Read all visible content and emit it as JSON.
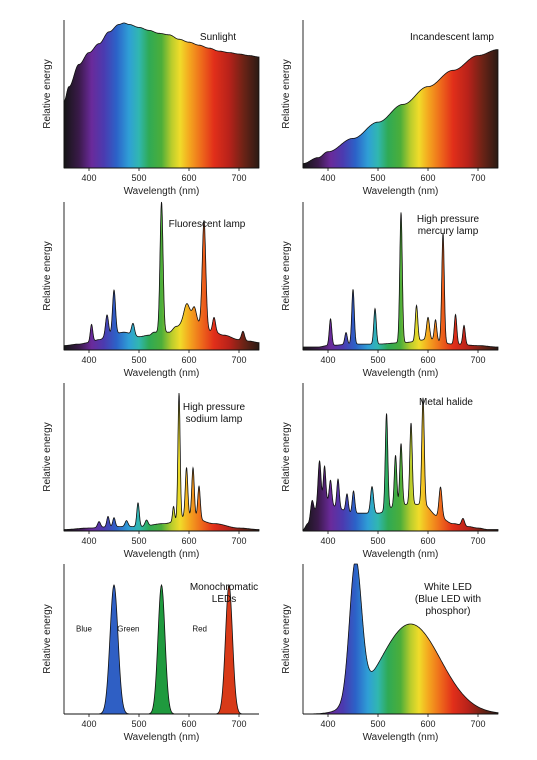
{
  "spectrum": {
    "stops": [
      [
        350,
        "#151515"
      ],
      [
        380,
        "#3a1a4a"
      ],
      [
        405,
        "#6a2a9a"
      ],
      [
        430,
        "#4b3bb0"
      ],
      [
        455,
        "#2c62c8"
      ],
      [
        480,
        "#2f9fd6"
      ],
      [
        500,
        "#30b7b0"
      ],
      [
        520,
        "#2faa55"
      ],
      [
        545,
        "#4cae3a"
      ],
      [
        565,
        "#b9cc2c"
      ],
      [
        582,
        "#f0dc2a"
      ],
      [
        600,
        "#f4a91f"
      ],
      [
        625,
        "#ee6a1b"
      ],
      [
        650,
        "#e12f1a"
      ],
      [
        680,
        "#b8221a"
      ],
      [
        710,
        "#6a2316"
      ],
      [
        740,
        "#2a1a14"
      ]
    ]
  },
  "chart_data": [
    {
      "type": "area",
      "title": [
        "Sunlight"
      ],
      "xlabel": "Wavelength (nm)",
      "ylabel": "Relative energy",
      "xlim": [
        350,
        740
      ],
      "ylim": [
        0,
        1
      ],
      "xticks": [
        400,
        500,
        600,
        700
      ],
      "x": [
        350,
        360,
        380,
        400,
        420,
        440,
        460,
        470,
        480,
        500,
        520,
        540,
        560,
        580,
        600,
        620,
        640,
        660,
        680,
        700,
        720,
        740
      ],
      "y": [
        0.45,
        0.55,
        0.7,
        0.78,
        0.84,
        0.92,
        0.97,
        0.98,
        0.97,
        0.95,
        0.93,
        0.91,
        0.9,
        0.87,
        0.85,
        0.83,
        0.81,
        0.79,
        0.78,
        0.77,
        0.76,
        0.75
      ]
    },
    {
      "type": "area",
      "title": [
        "Incandescent lamp"
      ],
      "xlabel": "Wavelength (nm)",
      "ylabel": "Relative energy",
      "xlim": [
        350,
        740
      ],
      "ylim": [
        0,
        1
      ],
      "xticks": [
        400,
        500,
        600,
        700
      ],
      "x": [
        350,
        380,
        400,
        450,
        500,
        550,
        600,
        650,
        700,
        740
      ],
      "y": [
        0.03,
        0.07,
        0.11,
        0.2,
        0.31,
        0.43,
        0.55,
        0.66,
        0.76,
        0.8
      ]
    },
    {
      "type": "area",
      "title": [
        "Fluorescent lamp"
      ],
      "xlabel": "Wavelength (nm)",
      "ylabel": "Relative energy",
      "xlim": [
        350,
        740
      ],
      "ylim": [
        0,
        1
      ],
      "xticks": [
        400,
        500,
        600,
        700
      ],
      "base": 0.03,
      "x": [
        350,
        380,
        400,
        420,
        440,
        470,
        500,
        520,
        530,
        560,
        575,
        600,
        615,
        650,
        670,
        700,
        720,
        740
      ],
      "y": [
        0.03,
        0.04,
        0.05,
        0.07,
        0.1,
        0.12,
        0.09,
        0.1,
        0.12,
        0.12,
        0.16,
        0.24,
        0.18,
        0.12,
        0.1,
        0.07,
        0.06,
        0.05
      ],
      "peaks": [
        {
          "x": 405,
          "h": 0.12,
          "w": 2.5
        },
        {
          "x": 436,
          "h": 0.14,
          "w": 3
        },
        {
          "x": 450,
          "h": 0.3,
          "w": 3
        },
        {
          "x": 488,
          "h": 0.08,
          "w": 3
        },
        {
          "x": 545,
          "h": 0.88,
          "w": 3
        },
        {
          "x": 595,
          "h": 0.08,
          "w": 5
        },
        {
          "x": 611,
          "h": 0.1,
          "w": 4
        },
        {
          "x": 630,
          "h": 0.72,
          "w": 3.5
        },
        {
          "x": 650,
          "h": 0.1,
          "w": 3
        },
        {
          "x": 708,
          "h": 0.06,
          "w": 3
        }
      ]
    },
    {
      "type": "area",
      "title": [
        "High pressure",
        "mercury lamp"
      ],
      "xlabel": "Wavelength (nm)",
      "ylabel": "Relative energy",
      "xlim": [
        350,
        740
      ],
      "ylim": [
        0,
        1
      ],
      "xticks": [
        400,
        500,
        600,
        700
      ],
      "base": 0.02,
      "x": [
        350,
        380,
        400,
        450,
        500,
        550,
        600,
        650,
        700,
        740
      ],
      "y": [
        0.02,
        0.02,
        0.03,
        0.04,
        0.04,
        0.05,
        0.07,
        0.04,
        0.03,
        0.02
      ],
      "peaks": [
        {
          "x": 405,
          "h": 0.18,
          "w": 2.5
        },
        {
          "x": 436,
          "h": 0.08,
          "w": 2.5
        },
        {
          "x": 450,
          "h": 0.37,
          "w": 2.5
        },
        {
          "x": 494,
          "h": 0.24,
          "w": 2.5
        },
        {
          "x": 546,
          "h": 0.88,
          "w": 2.5
        },
        {
          "x": 577,
          "h": 0.24,
          "w": 2.5
        },
        {
          "x": 600,
          "h": 0.15,
          "w": 3
        },
        {
          "x": 615,
          "h": 0.14,
          "w": 2.5
        },
        {
          "x": 630,
          "h": 0.74,
          "w": 2.5
        },
        {
          "x": 655,
          "h": 0.2,
          "w": 2.5
        },
        {
          "x": 672,
          "h": 0.13,
          "w": 2.5
        }
      ]
    },
    {
      "type": "area",
      "title": [
        "High pressure",
        "sodium lamp"
      ],
      "xlabel": "Wavelength (nm)",
      "ylabel": "Relative energy",
      "xlim": [
        350,
        740
      ],
      "ylim": [
        0,
        1
      ],
      "xticks": [
        400,
        500,
        600,
        700
      ],
      "base": 0.02,
      "x": [
        350,
        400,
        450,
        500,
        550,
        600,
        650,
        700,
        740
      ],
      "y": [
        0.01,
        0.02,
        0.03,
        0.03,
        0.05,
        0.1,
        0.05,
        0.02,
        0.01
      ],
      "peaks": [
        {
          "x": 420,
          "h": 0.04,
          "w": 3
        },
        {
          "x": 438,
          "h": 0.07,
          "w": 2.5
        },
        {
          "x": 450,
          "h": 0.06,
          "w": 2.5
        },
        {
          "x": 475,
          "h": 0.04,
          "w": 3
        },
        {
          "x": 498,
          "h": 0.16,
          "w": 2.5
        },
        {
          "x": 515,
          "h": 0.04,
          "w": 3
        },
        {
          "x": 569,
          "h": 0.1,
          "w": 2
        },
        {
          "x": 580,
          "h": 0.85,
          "w": 2.2
        },
        {
          "x": 595,
          "h": 0.33,
          "w": 2.5
        },
        {
          "x": 608,
          "h": 0.33,
          "w": 2.5
        },
        {
          "x": 620,
          "h": 0.22,
          "w": 2.5
        }
      ]
    },
    {
      "type": "area",
      "title": [
        "Metal halide"
      ],
      "xlabel": "Wavelength (nm)",
      "ylabel": "Relative energy",
      "xlim": [
        350,
        740
      ],
      "ylim": [
        0,
        1
      ],
      "xticks": [
        400,
        500,
        600,
        700
      ],
      "base": 0.02,
      "x": [
        350,
        360,
        380,
        400,
        420,
        450,
        480,
        500,
        530,
        560,
        590,
        620,
        650,
        680,
        700,
        720,
        740
      ],
      "y": [
        0.01,
        0.05,
        0.15,
        0.2,
        0.15,
        0.12,
        0.12,
        0.12,
        0.16,
        0.18,
        0.18,
        0.1,
        0.05,
        0.03,
        0.02,
        0.01,
        0.01
      ],
      "peaks": [
        {
          "x": 368,
          "h": 0.12,
          "w": 3
        },
        {
          "x": 383,
          "h": 0.32,
          "w": 3
        },
        {
          "x": 393,
          "h": 0.25,
          "w": 2.5
        },
        {
          "x": 405,
          "h": 0.15,
          "w": 2.5
        },
        {
          "x": 420,
          "h": 0.2,
          "w": 2.5
        },
        {
          "x": 438,
          "h": 0.12,
          "w": 2.5
        },
        {
          "x": 451,
          "h": 0.15,
          "w": 2.5
        },
        {
          "x": 488,
          "h": 0.18,
          "w": 3
        },
        {
          "x": 517,
          "h": 0.65,
          "w": 2.5
        },
        {
          "x": 535,
          "h": 0.35,
          "w": 2.5
        },
        {
          "x": 546,
          "h": 0.42,
          "w": 2.5
        },
        {
          "x": 566,
          "h": 0.55,
          "w": 2.5
        },
        {
          "x": 590,
          "h": 0.72,
          "w": 2.5
        },
        {
          "x": 625,
          "h": 0.2,
          "w": 3
        },
        {
          "x": 670,
          "h": 0.05,
          "w": 3
        }
      ]
    },
    {
      "type": "area",
      "title": [
        "Monochromatic",
        "LEDs"
      ],
      "xlabel": "Wavelength (nm)",
      "ylabel": "Relative energy",
      "xlim": [
        350,
        740
      ],
      "ylim": [
        0,
        1
      ],
      "xticks": [
        400,
        500,
        600,
        700
      ],
      "series": [
        {
          "name": "Blue",
          "peak": 450,
          "height": 0.86,
          "sigma": 8,
          "color": "#2f5fc4"
        },
        {
          "name": "Green",
          "peak": 545,
          "height": 0.86,
          "sigma": 7,
          "color": "#1f9a3e"
        },
        {
          "name": "Red",
          "peak": 680,
          "height": 0.86,
          "sigma": 7,
          "color": "#d83a18"
        }
      ]
    },
    {
      "type": "area",
      "title": [
        "White LED",
        "(Blue LED with",
        "phosphor)"
      ],
      "xlabel": "Wavelength (nm)",
      "ylabel": "Relative energy",
      "xlim": [
        350,
        740
      ],
      "ylim": [
        0,
        1
      ],
      "xticks": [
        400,
        500,
        600,
        700
      ],
      "components": [
        {
          "peak": 455,
          "height": 0.92,
          "sigma": 12
        },
        {
          "peak": 565,
          "height": 0.6,
          "sigma": 60
        }
      ]
    }
  ]
}
